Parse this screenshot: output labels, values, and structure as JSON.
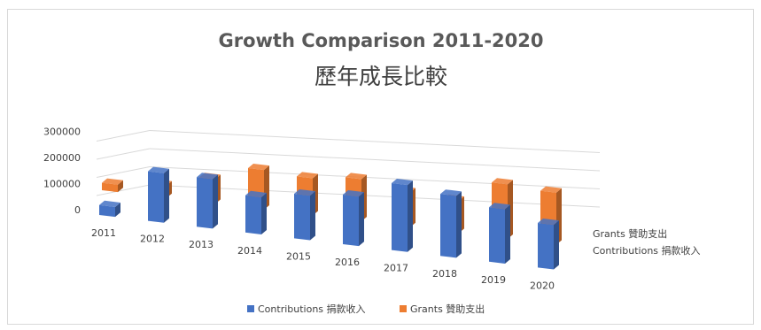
{
  "chart_data": {
    "type": "bar",
    "variant": "3d-column",
    "title": "Growth Comparison 2011-2020",
    "subtitle": "歷年成長比較",
    "categories": [
      "2011",
      "2012",
      "2013",
      "2014",
      "2015",
      "2016",
      "2017",
      "2018",
      "2019",
      "2020"
    ],
    "series": [
      {
        "name": "Contributions 捐款收入",
        "color": "#4472c4",
        "values": [
          40000,
          200000,
          200000,
          150000,
          180000,
          200000,
          270000,
          250000,
          220000,
          180000
        ]
      },
      {
        "name": "Grants 贊助支出",
        "color": "#ed7d31",
        "values": [
          30000,
          50000,
          100000,
          160000,
          150000,
          170000,
          140000,
          130000,
          220000,
          210000
        ]
      }
    ],
    "y_ticks": [
      "0",
      "100000",
      "200000",
      "300000"
    ],
    "ylim": [
      0,
      300000
    ],
    "grid": true,
    "legend_position": "bottom",
    "depth_axis_labels": [
      "Grants 贊助支出",
      "Contributions 捐款收入"
    ]
  }
}
